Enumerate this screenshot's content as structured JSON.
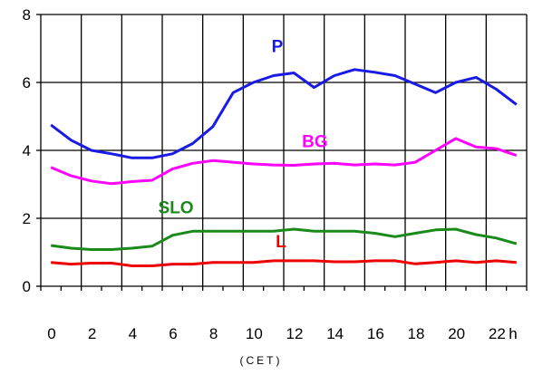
{
  "chart_data": {
    "type": "line",
    "title": "",
    "xlabel": "(CET)",
    "ylabel": "",
    "x_tick_labels": [
      "0",
      "2",
      "4",
      "6",
      "8",
      "10",
      "12",
      "14",
      "16",
      "18",
      "20",
      "22",
      "h"
    ],
    "y_tick_labels": [
      "0",
      "2",
      "4",
      "6",
      "8"
    ],
    "xlim": [
      0,
      24
    ],
    "ylim": [
      0,
      8
    ],
    "grid": true,
    "legend": "none",
    "x": [
      0.5,
      1.5,
      2.5,
      3.5,
      4.5,
      5.5,
      6.5,
      7.5,
      8.5,
      9.5,
      10.5,
      11.5,
      12.5,
      13.5,
      14.5,
      15.5,
      16.5,
      17.5,
      18.5,
      19.5,
      20.5,
      21.5,
      22.5,
      23.5
    ],
    "series": [
      {
        "name": "P",
        "color": "#1a1ae6",
        "values": [
          4.75,
          4.3,
          4.0,
          3.9,
          3.78,
          3.78,
          3.9,
          4.2,
          4.7,
          5.7,
          6.0,
          6.2,
          6.28,
          5.85,
          6.2,
          6.38,
          6.3,
          6.2,
          5.95,
          5.7,
          6.0,
          6.15,
          5.8,
          5.35
        ]
      },
      {
        "name": "BG",
        "color": "#ff00ff",
        "values": [
          3.5,
          3.25,
          3.1,
          3.02,
          3.08,
          3.12,
          3.45,
          3.62,
          3.7,
          3.65,
          3.6,
          3.57,
          3.56,
          3.6,
          3.62,
          3.57,
          3.6,
          3.57,
          3.65,
          4.0,
          4.35,
          4.1,
          4.05,
          3.85
        ]
      },
      {
        "name": "SLO",
        "color": "#1a8a1a",
        "values": [
          1.2,
          1.12,
          1.08,
          1.08,
          1.12,
          1.18,
          1.5,
          1.62,
          1.62,
          1.62,
          1.62,
          1.62,
          1.68,
          1.62,
          1.62,
          1.62,
          1.56,
          1.46,
          1.56,
          1.66,
          1.68,
          1.52,
          1.42,
          1.25
        ]
      },
      {
        "name": "L",
        "color": "#ee0000",
        "values": [
          0.7,
          0.65,
          0.68,
          0.68,
          0.6,
          0.6,
          0.65,
          0.65,
          0.7,
          0.7,
          0.7,
          0.75,
          0.75,
          0.75,
          0.72,
          0.72,
          0.75,
          0.75,
          0.66,
          0.7,
          0.75,
          0.7,
          0.75,
          0.7
        ]
      }
    ]
  }
}
